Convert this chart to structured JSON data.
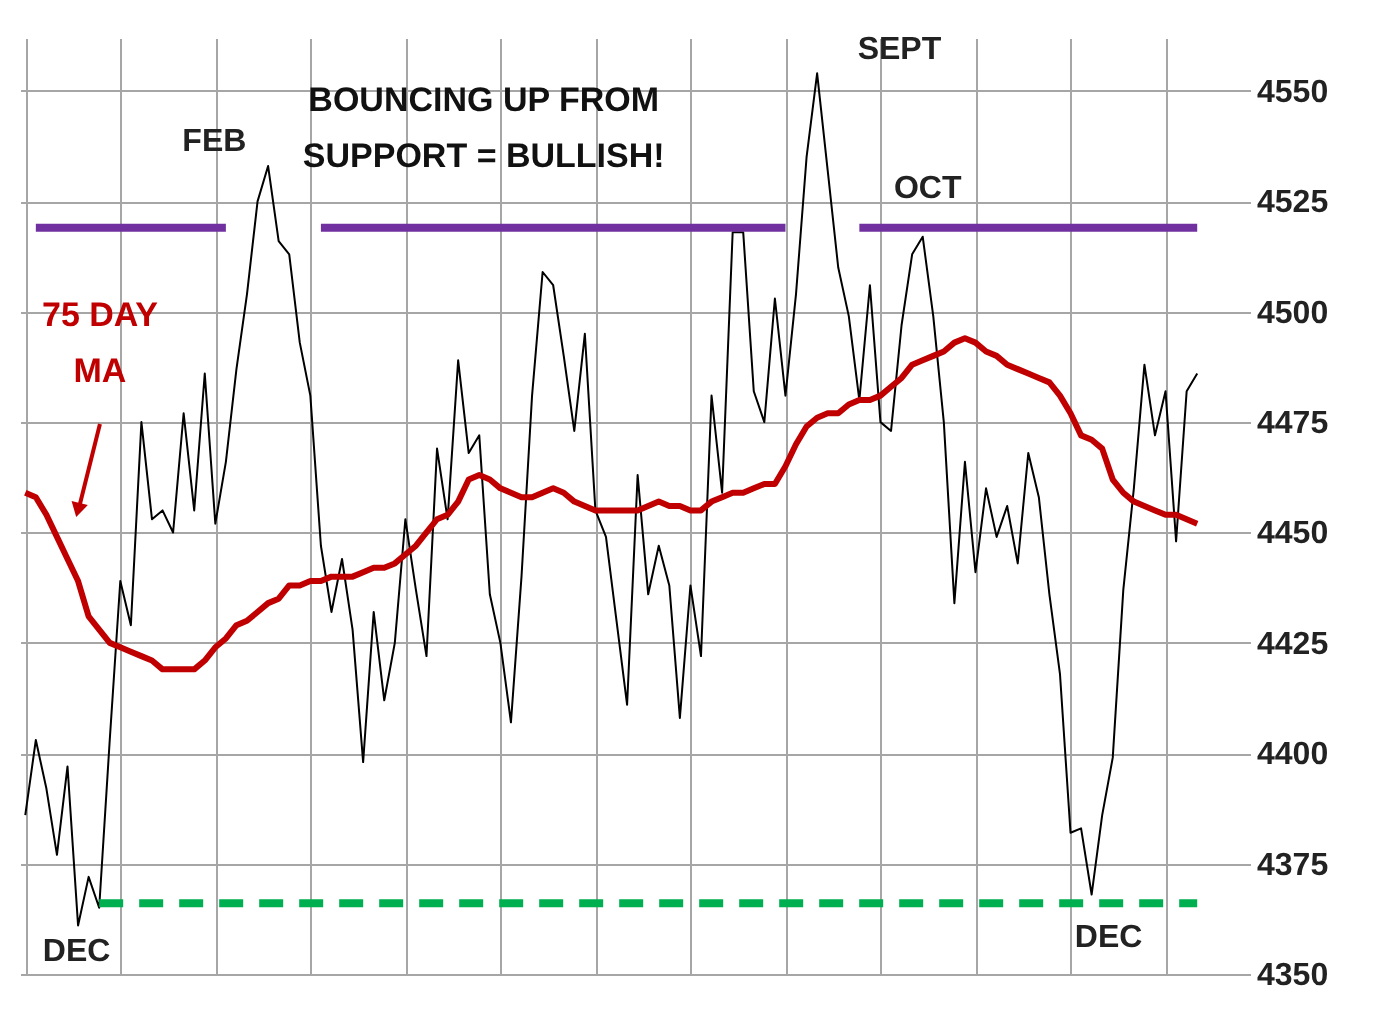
{
  "chart_data": {
    "type": "line",
    "categories": [
      null,
      null,
      null,
      null,
      null,
      null,
      null,
      null,
      null,
      null,
      null,
      null,
      null,
      null,
      null,
      null,
      null,
      null,
      null,
      null,
      null,
      null,
      null,
      null,
      null,
      null,
      null,
      null,
      null,
      null,
      null,
      null,
      null,
      null,
      null,
      null,
      null,
      null,
      null,
      null,
      null,
      null,
      null,
      null,
      null,
      null,
      null,
      null,
      null,
      null,
      null,
      null,
      null,
      null,
      null,
      null,
      null,
      null,
      null,
      null,
      null,
      null,
      null,
      null,
      null,
      null,
      null,
      null,
      null,
      null,
      null,
      null,
      null,
      null,
      null,
      null,
      null,
      null,
      null,
      null,
      null,
      null,
      null,
      null,
      null,
      null,
      null,
      null,
      null,
      null,
      null,
      null,
      null,
      null,
      null,
      null,
      null,
      null,
      null,
      null,
      null,
      null,
      null,
      null,
      null,
      null,
      null,
      null,
      null,
      null,
      null,
      null
    ],
    "ylim": [
      4350,
      4562
    ],
    "yticks": [
      4350,
      4375,
      4400,
      4425,
      4450,
      4475,
      4500,
      4525,
      4550
    ],
    "grid": true,
    "tick_labels": "y",
    "marker": "none",
    "series": [
      {
        "color": "#000000",
        "values": [
          4386,
          4403,
          4392,
          4377,
          4397,
          4361,
          4372,
          4365,
          4403,
          4439,
          4429,
          4475,
          4453,
          4455,
          4450,
          4477,
          4455,
          4486,
          4452,
          4466,
          4487,
          4504,
          4525,
          4533,
          4516,
          4513,
          4493,
          4481,
          4447,
          4432,
          4444,
          4428,
          4398,
          4432,
          4412,
          4425,
          4453,
          4437,
          4422,
          4469,
          4453,
          4489,
          4468,
          4472,
          4436,
          4425,
          4407,
          4440,
          4481,
          4509,
          4506,
          4490,
          4473,
          4495,
          4455,
          4449,
          4430,
          4411,
          4463,
          4436,
          4447,
          4438,
          4408,
          4438,
          4422,
          4481,
          4459,
          4518,
          4518,
          4482,
          4475,
          4503,
          4481,
          4504,
          4535,
          4554,
          4532,
          4510,
          4499,
          4480,
          4506,
          4475,
          4473,
          4497,
          4513,
          4517,
          4499,
          4475,
          4434,
          4466,
          4441,
          4460,
          4449,
          4456,
          4443,
          4468,
          4458,
          4436,
          4418,
          4382,
          4383,
          4368,
          4386,
          4399,
          4437,
          4460,
          4488,
          4472,
          4482,
          4448,
          4482,
          4486
        ]
      },
      {
        "color": "#c00000",
        "values": [
          4459,
          4458,
          4454,
          4449,
          4444,
          4439,
          4431,
          4428,
          4425,
          4424,
          4423,
          4422,
          4421,
          4419,
          4419,
          4419,
          4419,
          4421,
          4424,
          4426,
          4429,
          4430,
          4432,
          4434,
          4435,
          4438,
          4438,
          4439,
          4439,
          4440,
          4440,
          4440,
          4441,
          4442,
          4442,
          4443,
          4445,
          4447,
          4450,
          4453,
          4454,
          4457,
          4462,
          4463,
          4462,
          4460,
          4459,
          4458,
          4458,
          4459,
          4460,
          4459,
          4457,
          4456,
          4455,
          4455,
          4455,
          4455,
          4455,
          4456,
          4457,
          4456,
          4456,
          4455,
          4455,
          4457,
          4458,
          4459,
          4459,
          4460,
          4461,
          4461,
          4465,
          4470,
          4474,
          4476,
          4477,
          4477,
          4479,
          4480,
          4480,
          4481,
          4483,
          4485,
          4488,
          4489,
          4490,
          4491,
          4493,
          4494,
          4493,
          4491,
          4490,
          4488,
          4487,
          4486,
          4485,
          4484,
          4481,
          4477,
          4472,
          4471,
          4469,
          4462,
          4459,
          4457,
          4456,
          4455,
          4454,
          4454,
          4453,
          4452
        ]
      },
      {
        "color": "#7030a0",
        "values": [
          null,
          4519,
          4519,
          4519,
          4519,
          4519,
          4519,
          4519,
          4519,
          4519,
          4519,
          4519,
          4519,
          4519,
          4519,
          4519,
          4519,
          4519,
          4519,
          4519,
          null,
          null,
          null,
          null,
          null,
          null,
          null,
          null,
          null,
          null,
          null,
          null,
          null,
          null,
          null,
          null,
          null,
          null,
          null,
          null,
          null,
          null,
          null,
          null,
          null,
          null,
          null,
          null,
          null,
          null,
          null,
          null,
          null,
          null,
          null,
          null,
          null,
          null,
          null,
          null,
          null,
          null,
          null,
          null,
          null,
          null,
          null,
          null,
          null,
          null,
          null,
          null,
          null,
          null,
          null,
          null,
          null,
          null,
          null,
          null,
          null,
          null,
          null,
          null,
          null,
          null,
          null,
          null,
          null,
          null,
          null,
          null,
          null,
          null,
          null,
          null,
          null,
          null,
          null,
          null,
          null,
          null,
          null,
          null,
          null,
          null,
          null,
          null,
          null,
          null,
          null,
          null
        ]
      },
      {
        "color": "#7030a0",
        "values": [
          null,
          null,
          null,
          null,
          null,
          null,
          null,
          null,
          null,
          null,
          null,
          null,
          null,
          null,
          null,
          null,
          null,
          null,
          null,
          null,
          null,
          null,
          null,
          null,
          null,
          null,
          null,
          null,
          4519,
          4519,
          4519,
          4519,
          4519,
          4519,
          4519,
          4519,
          4519,
          4519,
          4519,
          4519,
          4519,
          4519,
          4519,
          4519,
          4519,
          4519,
          4519,
          4519,
          4519,
          4519,
          4519,
          4519,
          4519,
          4519,
          4519,
          4519,
          4519,
          4519,
          4519,
          4519,
          4519,
          4519,
          4519,
          4519,
          4519,
          4519,
          4519,
          4519,
          4519,
          4519,
          4519,
          4519,
          4519,
          null,
          null,
          null,
          null,
          null,
          null,
          null,
          null,
          null,
          null,
          null,
          null,
          null,
          null,
          null,
          null,
          null,
          null,
          null,
          null,
          null,
          null,
          null,
          null,
          null,
          null,
          null,
          null,
          null,
          null,
          null,
          null,
          null,
          null,
          null,
          null,
          null,
          null,
          null
        ]
      },
      {
        "color": "#7030a0",
        "values": [
          null,
          null,
          null,
          null,
          null,
          null,
          null,
          null,
          null,
          null,
          null,
          null,
          null,
          null,
          null,
          null,
          null,
          null,
          null,
          null,
          null,
          null,
          null,
          null,
          null,
          null,
          null,
          null,
          null,
          null,
          null,
          null,
          null,
          null,
          null,
          null,
          null,
          null,
          null,
          null,
          null,
          null,
          null,
          null,
          null,
          null,
          null,
          null,
          null,
          null,
          null,
          null,
          null,
          null,
          null,
          null,
          null,
          null,
          null,
          null,
          null,
          null,
          null,
          null,
          null,
          null,
          null,
          null,
          null,
          null,
          null,
          null,
          null,
          null,
          null,
          null,
          null,
          null,
          null,
          4519,
          4519,
          4519,
          4519,
          4519,
          4519,
          4519,
          4519,
          4519,
          4519,
          4519,
          4519,
          4519,
          4519,
          4519,
          4519,
          4519,
          4519,
          4519,
          4519,
          4519,
          4519,
          4519,
          4519,
          4519,
          4519,
          4519,
          4519,
          4519,
          4519,
          4519,
          4519,
          4519
        ]
      },
      {
        "color": "#00b050",
        "line_style": "dashed",
        "values": [
          null,
          null,
          null,
          null,
          null,
          null,
          null,
          4366,
          4366,
          4366,
          4366,
          4366,
          4366,
          4366,
          4366,
          4366,
          4366,
          4366,
          4366,
          4366,
          4366,
          4366,
          4366,
          4366,
          4366,
          4366,
          4366,
          4366,
          4366,
          4366,
          4366,
          4366,
          4366,
          4366,
          4366,
          4366,
          4366,
          4366,
          4366,
          4366,
          4366,
          4366,
          4366,
          4366,
          4366,
          4366,
          4366,
          4366,
          4366,
          4366,
          4366,
          4366,
          4366,
          4366,
          4366,
          4366,
          4366,
          4366,
          4366,
          4366,
          4366,
          4366,
          4366,
          4366,
          4366,
          4366,
          4366,
          4366,
          4366,
          4366,
          4366,
          4366,
          4366,
          4366,
          4366,
          4366,
          4366,
          4366,
          4366,
          4366,
          4366,
          4366,
          4366,
          4366,
          4366,
          4366,
          4366,
          4366,
          4366,
          4366,
          4366,
          4366,
          4366,
          4366,
          4366,
          4366,
          4366,
          4366,
          4366,
          4366,
          4366,
          4366,
          4366,
          4366,
          4366,
          4366,
          4366,
          4366,
          4366,
          4366,
          4366,
          4366
        ]
      }
    ],
    "annotations": [
      "BOUNCING UP FROM\nSUPPORT = BULLISH!",
      "75 DAY\nMA",
      "FEB",
      "SEPT",
      "OCT",
      "DEC",
      "DEC"
    ]
  }
}
